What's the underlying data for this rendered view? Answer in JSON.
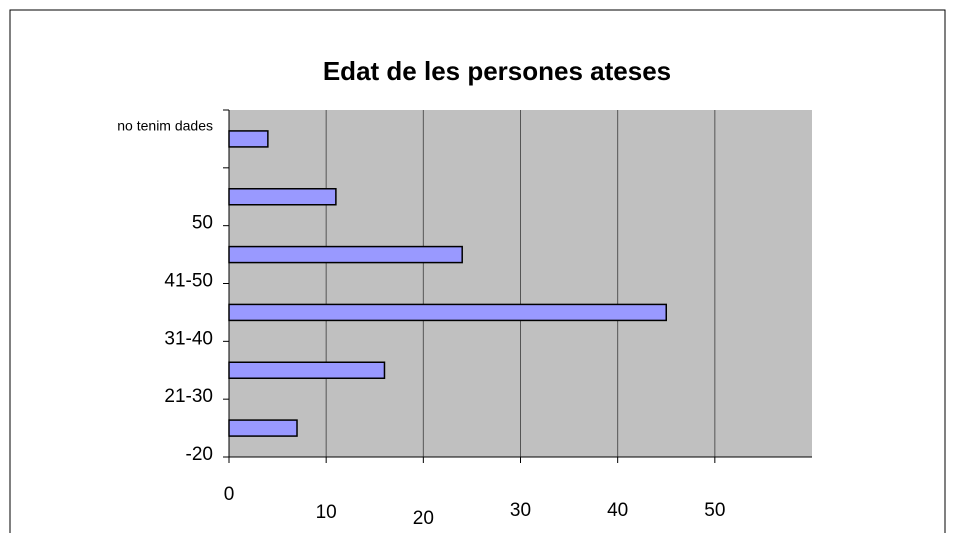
{
  "chart_data": {
    "type": "bar",
    "orientation": "horizontal",
    "title": "Edat de les persones ateses",
    "categories": [
      "-20",
      "21-30",
      "31-40",
      "41-50",
      "50",
      "no tenim dades"
    ],
    "values": [
      7,
      16,
      45,
      24,
      11,
      4
    ],
    "color": "#9999ff",
    "xlim": [
      0,
      60
    ],
    "xticks": [
      0,
      10,
      20,
      30,
      40,
      50
    ],
    "grid": true
  }
}
